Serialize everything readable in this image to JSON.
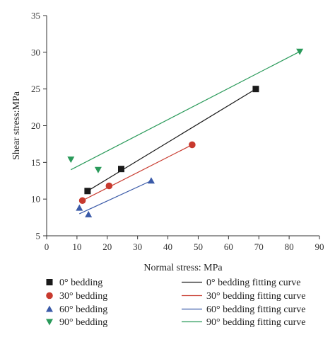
{
  "chart_data": {
    "type": "scatter",
    "xlabel": "Normal stress: MPa",
    "ylabel": "Shear stress:MPa",
    "xlim": [
      0,
      90
    ],
    "ylim": [
      5,
      35
    ],
    "xticks": [
      "0",
      "10",
      "20",
      "30",
      "40",
      "50",
      "60",
      "70",
      "80",
      "90"
    ],
    "yticks": [
      "5",
      "10",
      "15",
      "20",
      "25",
      "30",
      "35"
    ],
    "grid": false,
    "legend_position": "bottom",
    "series": [
      {
        "name": "0° bedding",
        "marker": "square",
        "color": "#1a1a1a",
        "points": [
          [
            13.5,
            11.1
          ],
          [
            24.6,
            14.1
          ],
          [
            69.0,
            25.0
          ]
        ],
        "fit_name": "0° bedding fitting curve",
        "fit_line": [
          [
            13.5,
            11.1
          ],
          [
            69.0,
            25.0
          ]
        ]
      },
      {
        "name": "30° bedding",
        "marker": "circle",
        "color": "#c83a2e",
        "points": [
          [
            11.8,
            9.8
          ],
          [
            20.6,
            11.8
          ],
          [
            48.0,
            17.4
          ]
        ],
        "fit_name": "30° bedding fitting curve",
        "fit_line": [
          [
            11.8,
            9.8
          ],
          [
            48.0,
            17.4
          ]
        ]
      },
      {
        "name": "60° bedding",
        "marker": "triangle-up",
        "color": "#3a5aa8",
        "points": [
          [
            10.8,
            8.8
          ],
          [
            13.8,
            7.9
          ],
          [
            34.5,
            12.5
          ]
        ],
        "fit_name": "60° bedding fitting curve",
        "fit_line": [
          [
            10.8,
            8.0
          ],
          [
            34.5,
            12.5
          ]
        ]
      },
      {
        "name": "90° bedding",
        "marker": "triangle-down",
        "color": "#2a9a5a",
        "points": [
          [
            8.0,
            15.4
          ],
          [
            17.0,
            14.0
          ],
          [
            83.5,
            30.1
          ]
        ],
        "fit_name": "90° bedding fitting curve",
        "fit_line": [
          [
            8.0,
            14.0
          ],
          [
            83.5,
            30.1
          ]
        ]
      }
    ]
  }
}
